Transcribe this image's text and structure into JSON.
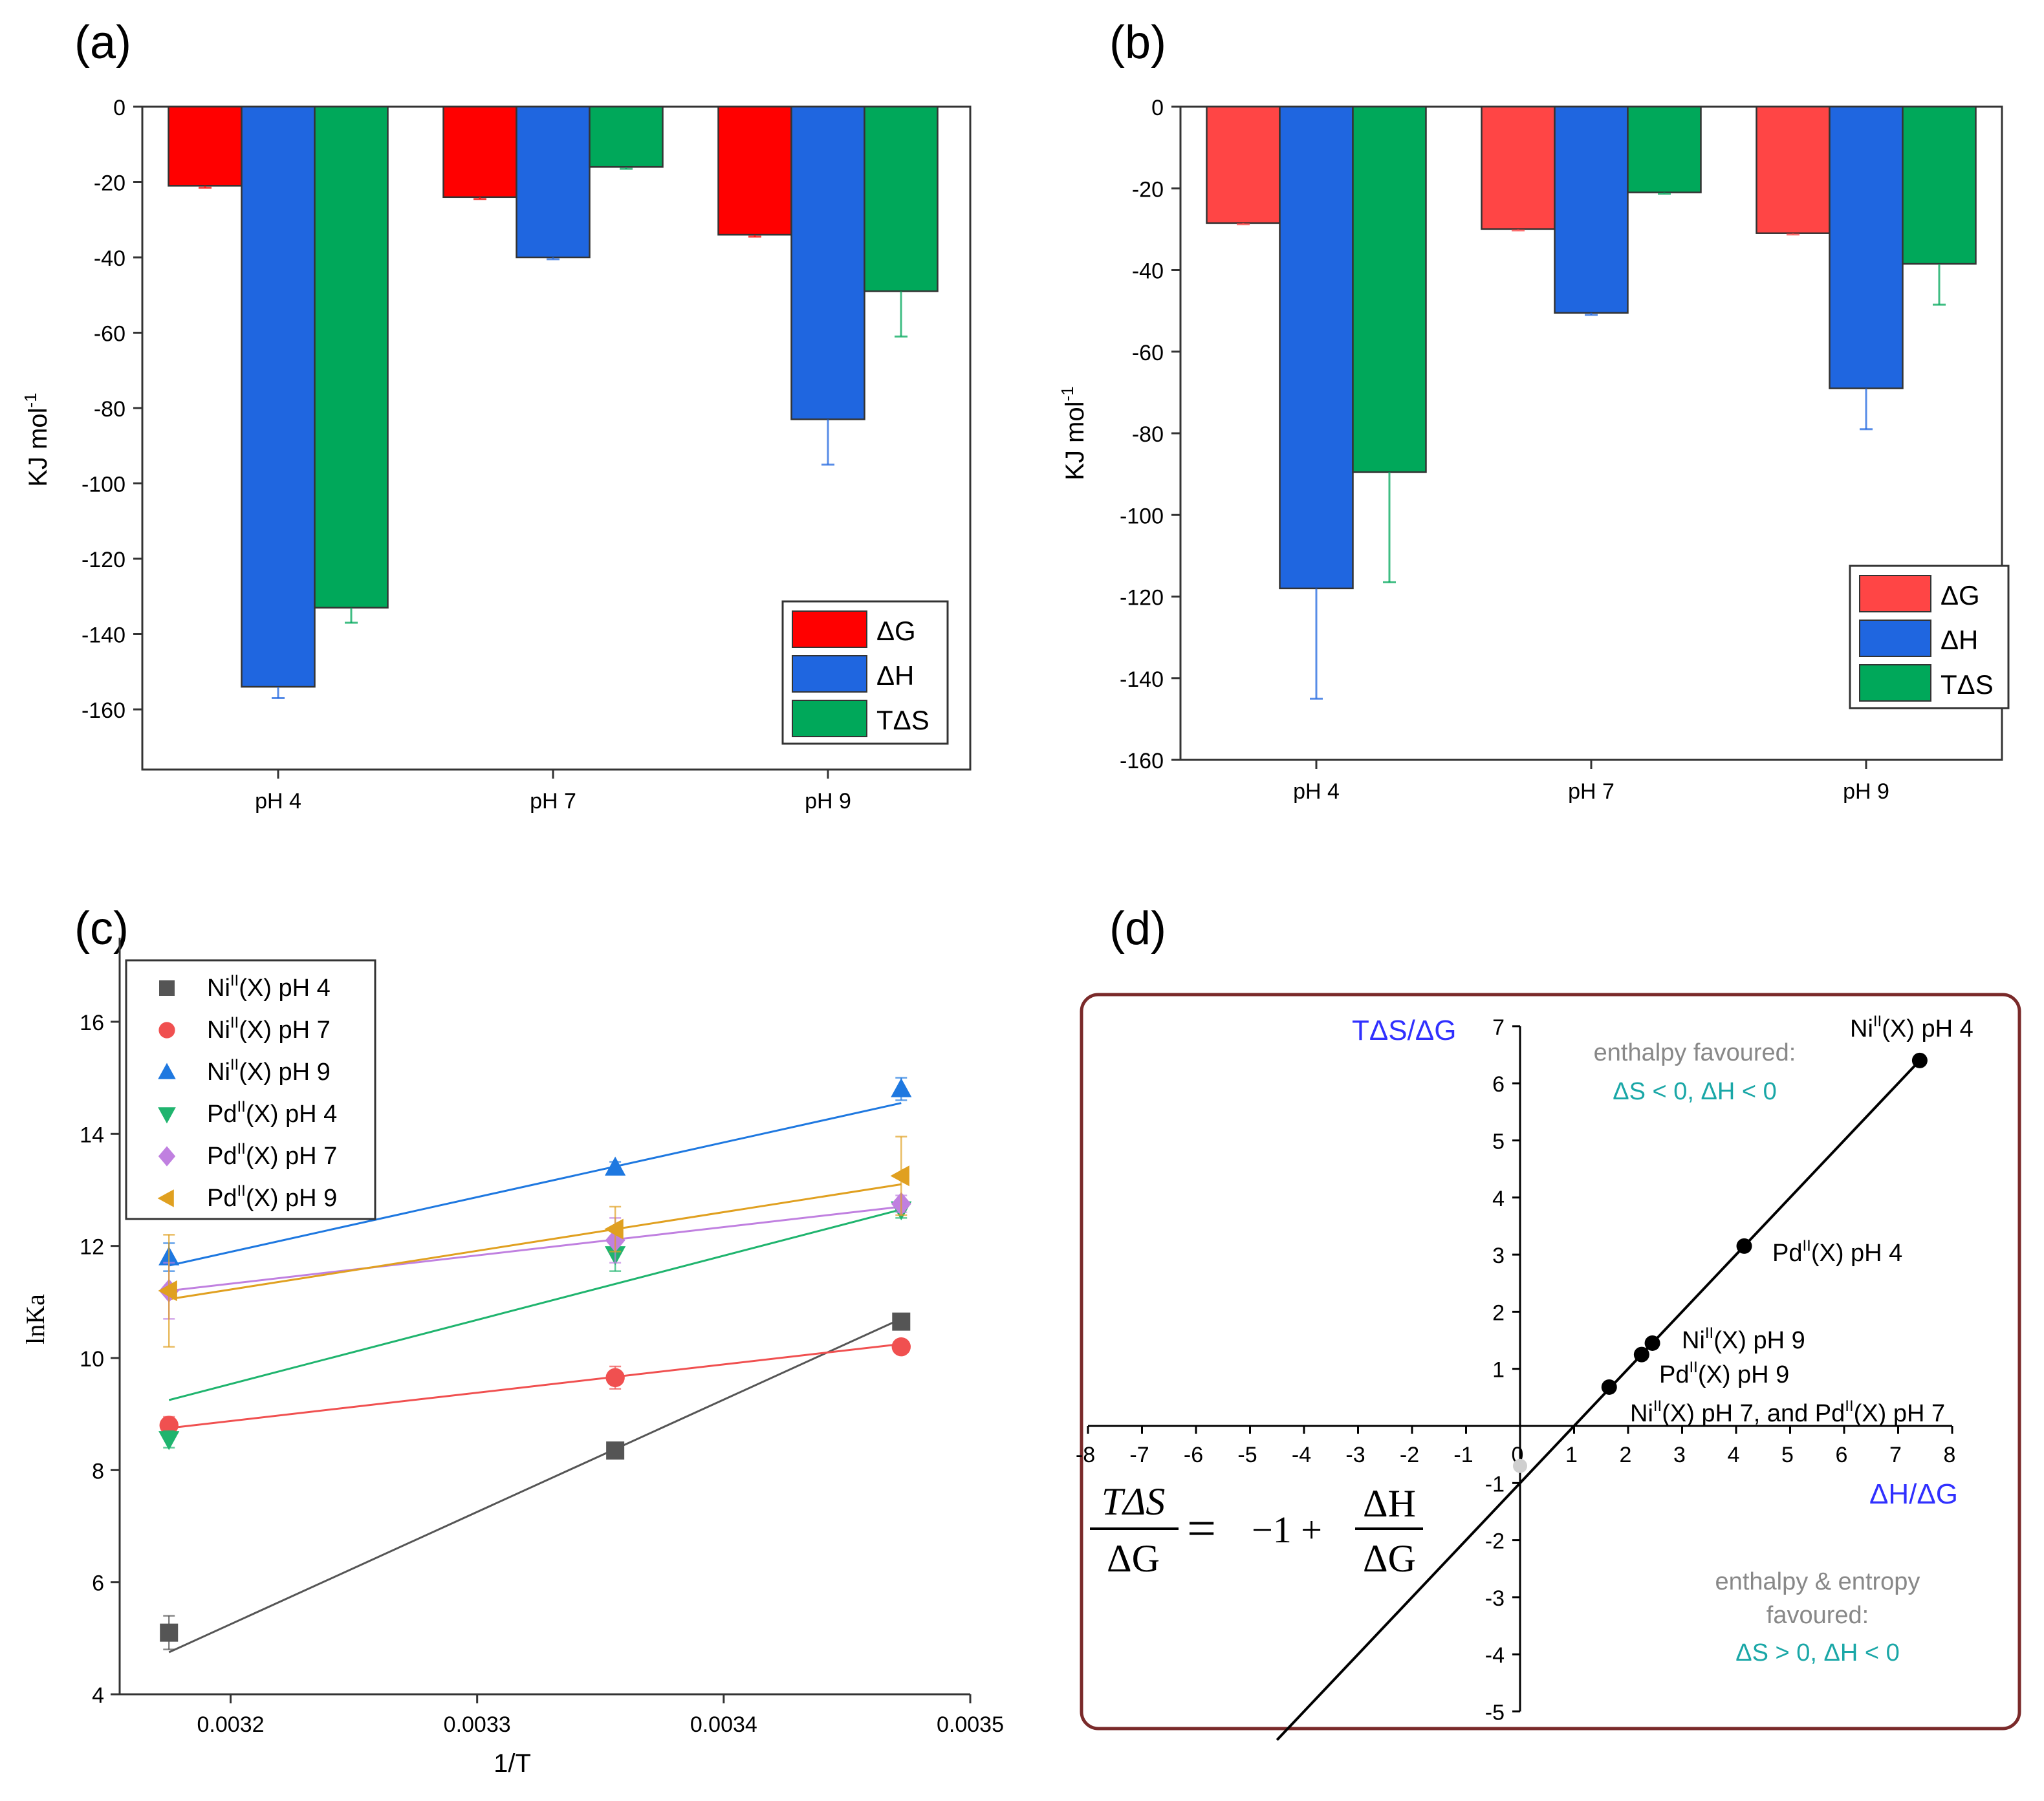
{
  "colors": {
    "dG_a": "#ff0000",
    "dH": "#1f66e0",
    "TdS": "#00a85a",
    "dG_b": "#ff4545",
    "ni4": "#555555",
    "ni7": "#f05050",
    "ni9": "#1e78e0",
    "pd4": "#1fb46e",
    "pd7": "#c080e0",
    "pd9": "#e0a020",
    "frame_d": "#7a2a2a",
    "axis_title_d": "#3030ff",
    "region_gray": "#888888",
    "region_teal": "#1aa7a7"
  },
  "chart_data": [
    {
      "panel": "(a)",
      "type": "bar",
      "ylabel": "KJ mol",
      "ylabel_sup": "-1",
      "ylim": [
        -170,
        0
      ],
      "yticks": [
        0,
        -20,
        -40,
        -60,
        -80,
        -100,
        -120,
        -140,
        -160
      ],
      "categories": [
        "pH 4",
        "pH 7",
        "pH 9"
      ],
      "series": [
        {
          "name": "ΔG",
          "values": [
            -21,
            -24,
            -34
          ],
          "errors": [
            0.5,
            0.5,
            0.5
          ]
        },
        {
          "name": "ΔH",
          "values": [
            -154,
            -40,
            -83
          ],
          "errors": [
            3,
            0.5,
            12
          ]
        },
        {
          "name": "TΔS",
          "values": [
            -133,
            -16,
            -49
          ],
          "errors": [
            4,
            0.5,
            12
          ]
        }
      ],
      "legend": "bottom-right"
    },
    {
      "panel": "(b)",
      "type": "bar",
      "ylabel": "KJ mol",
      "ylabel_sup": "-1",
      "ylim": [
        -160,
        0
      ],
      "yticks": [
        0,
        -20,
        -40,
        -60,
        -80,
        -100,
        -120,
        -140,
        -160
      ],
      "categories": [
        "pH 4",
        "pH 7",
        "pH 9"
      ],
      "series": [
        {
          "name": "ΔG",
          "values": [
            -28.5,
            -30,
            -31
          ],
          "errors": [
            0.3,
            0.3,
            0.3
          ]
        },
        {
          "name": "ΔH",
          "values": [
            -118,
            -50.5,
            -69
          ],
          "errors": [
            27,
            0.5,
            10
          ]
        },
        {
          "name": "TΔS",
          "values": [
            -89.5,
            -21,
            -38.5
          ],
          "errors": [
            27,
            0.3,
            10
          ]
        }
      ],
      "legend": "bottom-right"
    },
    {
      "panel": "(c)",
      "type": "scatter",
      "xlabel": "1/T",
      "ylabel": "lnKa",
      "xlim": [
        0.003155,
        0.0035
      ],
      "ylim": [
        4,
        17.5
      ],
      "xticks": [
        0.0032,
        0.0033,
        0.0034,
        0.0035
      ],
      "xtick_labels": [
        "0.0032",
        "0.0033",
        "0.0034",
        "0.0035"
      ],
      "yticks": [
        4,
        6,
        8,
        10,
        12,
        14,
        16
      ],
      "x": [
        0.003175,
        0.003356,
        0.003472
      ],
      "series": [
        {
          "name": "Ni",
          "sup": "II",
          "tail": "(X) pH 4",
          "marker": "square",
          "values": [
            5.1,
            8.35,
            10.65
          ],
          "errors": [
            0.3,
            0.1,
            0.1
          ],
          "fit": [
            4.75,
            10.7
          ]
        },
        {
          "name": "Ni",
          "sup": "II",
          "tail": "(X) pH 7",
          "marker": "circle",
          "values": [
            8.8,
            9.65,
            10.2
          ],
          "errors": [
            0.15,
            0.2,
            0.1
          ],
          "fit": [
            8.75,
            10.25
          ]
        },
        {
          "name": "Ni",
          "sup": "II",
          "tail": "(X) pH 9",
          "marker": "triangle-up",
          "values": [
            11.8,
            13.4,
            14.8
          ],
          "errors": [
            0.25,
            0.1,
            0.2
          ],
          "fit": [
            11.65,
            14.55
          ]
        },
        {
          "name": "Pd",
          "sup": "II",
          "tail": "(X) pH 4",
          "marker": "triangle-down",
          "values": [
            8.55,
            11.85,
            12.65
          ],
          "errors": [
            0.15,
            0.3,
            0.15
          ],
          "fit": [
            9.25,
            12.65
          ]
        },
        {
          "name": "Pd",
          "sup": "II",
          "tail": "(X) pH 7",
          "marker": "diamond",
          "values": [
            11.2,
            12.1,
            12.75
          ],
          "errors": [
            0.5,
            0.4,
            0.15
          ],
          "fit": [
            11.2,
            12.7
          ]
        },
        {
          "name": "Pd",
          "sup": "II",
          "tail": "(X) pH 9",
          "marker": "triangle-left",
          "values": [
            11.2,
            12.3,
            13.25
          ],
          "errors": [
            1.0,
            0.4,
            0.7
          ],
          "fit": [
            11.05,
            13.1
          ]
        }
      ],
      "legend": "top-left"
    },
    {
      "panel": "(d)",
      "type": "scatter",
      "xlabel": "ΔH/ΔG",
      "ylabel": "TΔS/ΔG",
      "xlim": [
        -8,
        8
      ],
      "ylim": [
        -5,
        7
      ],
      "xticks": [
        -8,
        -7,
        -6,
        -5,
        -4,
        -3,
        -2,
        -1,
        0,
        1,
        2,
        3,
        4,
        5,
        6,
        7,
        8
      ],
      "yticks": [
        -5,
        -4,
        -3,
        -2,
        -1,
        0,
        1,
        2,
        3,
        4,
        5,
        6,
        7
      ],
      "line": {
        "slope": 1,
        "intercept": -1,
        "x_range": [
          -4.5,
          7.4
        ]
      },
      "points": [
        {
          "x": 7.4,
          "y": 6.4
        },
        {
          "x": 4.15,
          "y": 3.15
        },
        {
          "x": 2.45,
          "y": 1.45
        },
        {
          "x": 2.25,
          "y": 1.25
        },
        {
          "x": 1.65,
          "y": 0.68
        }
      ],
      "annotations": [
        {
          "main": "Ni",
          "sup": "II",
          "tail": "(X) pH 4"
        },
        {
          "main": "Pd",
          "sup": "II",
          "tail": "(X) pH 4"
        },
        {
          "main": "Ni",
          "sup": "II",
          "tail": "(X) pH 9"
        },
        {
          "main": "Pd",
          "sup": "II",
          "tail": "(X) pH 9"
        },
        {
          "main": "Ni",
          "sup": "II",
          "tail": "(X) pH 7, and Pd",
          "sup2": "II",
          "tail2": "(X) pH 7"
        }
      ],
      "region_top": {
        "title": "enthalpy favoured:",
        "condition": "ΔS < 0, ΔH < 0"
      },
      "region_bottom": {
        "title1": "enthalpy & entropy",
        "title2": "favoured:",
        "condition": "ΔS > 0, ΔH < 0"
      },
      "equation": {
        "lhs_num": "TΔS",
        "lhs_den": "ΔG",
        "equals": "=",
        "rhs_const": "−1 +",
        "rhs_num": "ΔH",
        "rhs_den": "ΔG"
      }
    }
  ]
}
